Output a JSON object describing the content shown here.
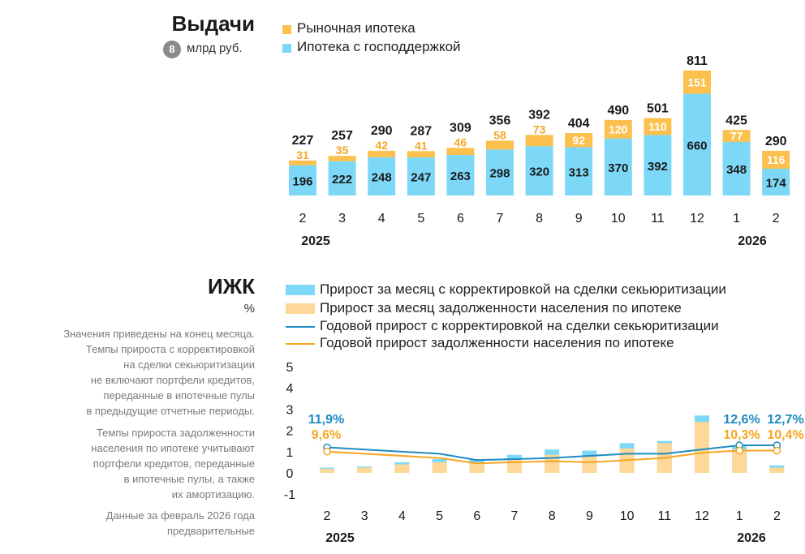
{
  "chart_data": [
    {
      "type": "bar",
      "stacked": true,
      "title": "Выдачи",
      "badge": "8",
      "unit": "млрд руб.",
      "categories": [
        "2",
        "3",
        "4",
        "5",
        "6",
        "7",
        "8",
        "9",
        "10",
        "11",
        "12",
        "1",
        "2"
      ],
      "year_labels": [
        "2025",
        "2026"
      ],
      "series": [
        {
          "name": "Ипотека с господдержкой",
          "color": "#7dd8f8",
          "values": [
            196,
            222,
            248,
            247,
            263,
            298,
            320,
            313,
            370,
            392,
            660,
            348,
            174
          ]
        },
        {
          "name": "Рыночная ипотека",
          "color": "#fbc04e",
          "values": [
            31,
            35,
            42,
            41,
            46,
            58,
            73,
            92,
            120,
            110,
            151,
            77,
            116
          ]
        }
      ],
      "totals": [
        227,
        257,
        290,
        287,
        309,
        356,
        392,
        404,
        490,
        501,
        811,
        425,
        290
      ]
    },
    {
      "type": "bar+line",
      "title": "ИЖК",
      "unit": "%",
      "categories": [
        "2",
        "3",
        "4",
        "5",
        "6",
        "7",
        "8",
        "9",
        "10",
        "11",
        "12",
        "1",
        "2"
      ],
      "year_labels": [
        "2025",
        "2026"
      ],
      "yticks": [
        "5",
        "4",
        "3",
        "2",
        "1",
        "0",
        "-1"
      ],
      "ylim": [
        -1,
        5
      ],
      "bar_series": [
        {
          "name": "Прирост за месяц с корректировкой на сделки секьюритизации",
          "color": "#7dd8f8",
          "values": [
            0.25,
            0.3,
            0.5,
            0.65,
            0.65,
            0.85,
            1.1,
            1.05,
            1.4,
            1.5,
            2.7,
            1.3,
            0.35
          ]
        },
        {
          "name": "Прирост за месяц задолженности населения по ипотеке",
          "color": "#fdd899",
          "values": [
            0.2,
            0.25,
            0.4,
            0.5,
            0.5,
            0.65,
            0.85,
            0.8,
            1.15,
            1.4,
            2.4,
            1.1,
            0.25
          ]
        }
      ],
      "line_series": [
        {
          "name": "Годовой прирост с корректировкой на сделки секьюритизации",
          "color": "#1e8bc3",
          "values": [
            1.2,
            null,
            null,
            0.9,
            0.6,
            0.65,
            0.7,
            0.8,
            0.9,
            0.9,
            1.1,
            1.3,
            1.3
          ]
        },
        {
          "name": "Годовой прирост задолженности населения по ипотеке",
          "color": "#f5a623",
          "values": [
            1.0,
            null,
            null,
            0.7,
            0.45,
            0.5,
            0.55,
            0.5,
            0.6,
            0.7,
            0.95,
            1.05,
            1.05
          ]
        }
      ],
      "annotations": [
        {
          "index": 0,
          "blue": "11,9%",
          "orange": "9,6%"
        },
        {
          "index": 11,
          "blue": "12,6%",
          "orange": "10,3%"
        },
        {
          "index": 12,
          "blue": "12,7%",
          "orange": "10,4%"
        }
      ],
      "notes": [
        [
          "Значения приведены на конец месяца.",
          "Темпы прироста с корректировкой",
          "на сделки секьюритизации",
          "не включают портфели кредитов,",
          "переданные в ипотечные пулы",
          "в предыдущие отчетные периоды."
        ],
        [
          "Темпы прироста задолженности",
          "населения по ипотеке учитывают",
          "портфели кредитов, переданные",
          "в ипотечные пулы, а также",
          "их амортизацию."
        ],
        [
          "Данные за февраль 2026 года",
          "предварительные"
        ]
      ]
    }
  ]
}
